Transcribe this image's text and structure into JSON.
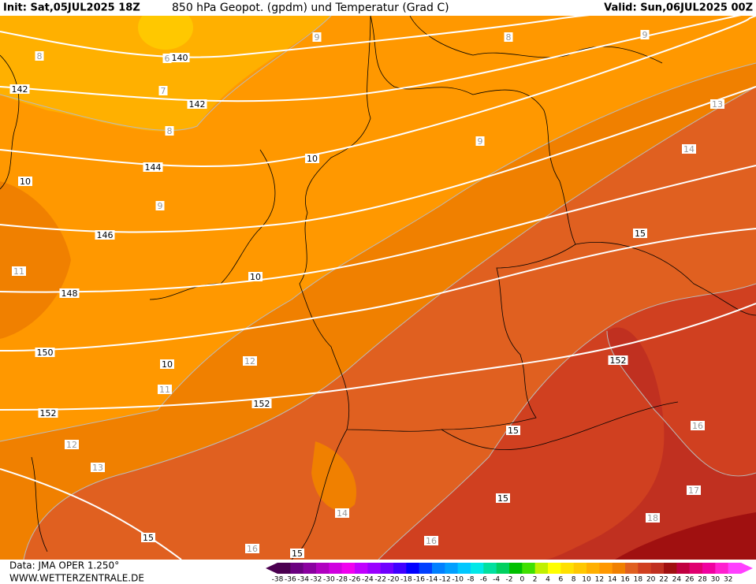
{
  "header": {
    "init": "Init: Sat,05JUL2025 18Z",
    "title": "850 hPa Geopot. (gpdm) und Temperatur (Grad C)",
    "valid": "Valid: Sun,06JUL2025 00Z"
  },
  "footer": {
    "source": "Data: JMA OPER 1.250°",
    "site": "WWW.WETTERZENTRALE.DE"
  },
  "geopotential_labels": [
    "140",
    "142",
    "142",
    "144",
    "146",
    "148",
    "150",
    "152",
    "152",
    "152"
  ],
  "temperature_labels": [
    "8",
    "6",
    "7",
    "8",
    "9",
    "8",
    "9",
    "13",
    "14",
    "9",
    "10",
    "10",
    "9",
    "11",
    "10",
    "10",
    "12",
    "11",
    "15",
    "15",
    "16",
    "12",
    "13",
    "15",
    "17",
    "14",
    "16",
    "18",
    "15",
    "16",
    "15"
  ],
  "colorbar": {
    "labels": [
      -38,
      -36,
      -34,
      -32,
      -30,
      -28,
      -26,
      -24,
      -22,
      -20,
      -18,
      -16,
      -14,
      -12,
      -10,
      -8,
      -6,
      -4,
      -2,
      0,
      2,
      4,
      6,
      8,
      10,
      12,
      14,
      16,
      18,
      20,
      22,
      24,
      26,
      28,
      30,
      32
    ],
    "colors": [
      "#4b0050",
      "#6a0080",
      "#8a00a0",
      "#b000c0",
      "#d000e0",
      "#f000f0",
      "#c000ff",
      "#9a00ff",
      "#7000ff",
      "#4000ff",
      "#0000ff",
      "#0040ff",
      "#0080ff",
      "#00a0ff",
      "#00c8ff",
      "#00e8e8",
      "#00e0a0",
      "#00d060",
      "#00c000",
      "#40e000",
      "#c0f000",
      "#ffff00",
      "#ffe000",
      "#ffc800",
      "#ffb000",
      "#ff9800",
      "#f08000",
      "#e06020",
      "#d04020",
      "#c03020",
      "#a01010",
      "#c00040",
      "#e00070",
      "#f000a0",
      "#ff20d0",
      "#ff40ff"
    ]
  }
}
